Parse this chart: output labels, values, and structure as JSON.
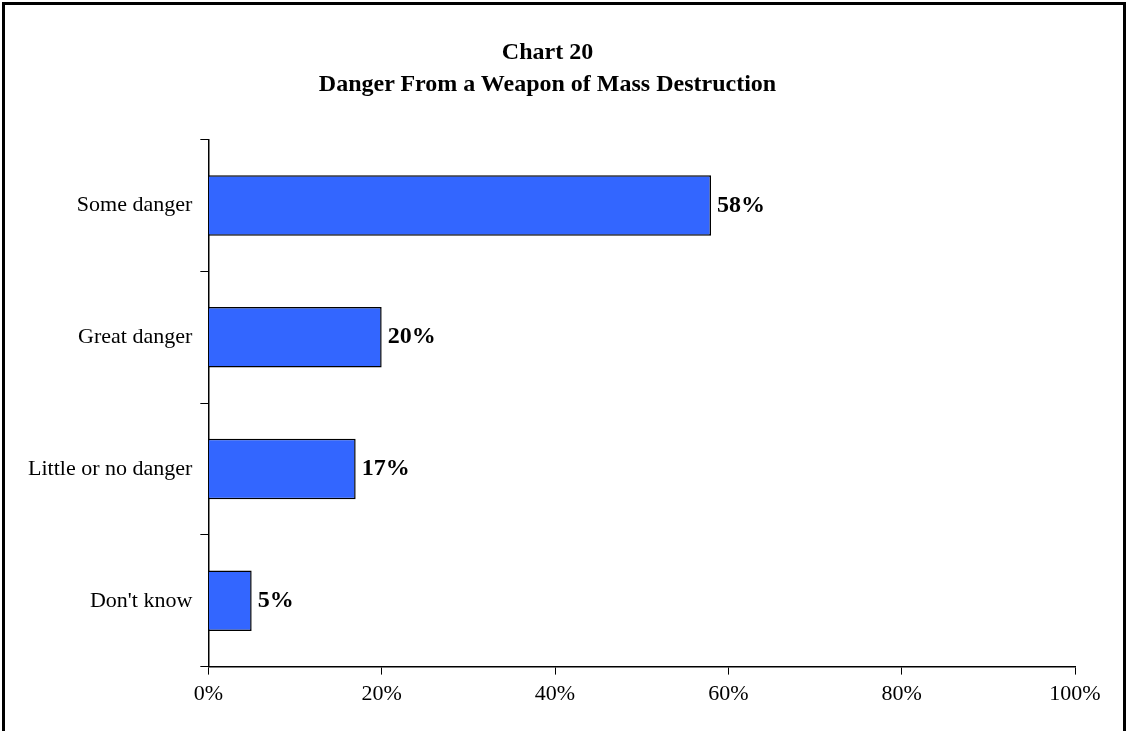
{
  "chart_data": {
    "type": "bar",
    "orientation": "horizontal",
    "title": "Chart 20",
    "subtitle": "Danger From a Weapon of Mass Destruction",
    "categories": [
      "Some danger",
      "Great danger",
      "Little or no danger",
      "Don't know"
    ],
    "values": [
      58,
      20,
      17,
      5
    ],
    "value_labels": [
      "58%",
      "20%",
      "17%",
      "5%"
    ],
    "color": "#3366ff",
    "xlim": [
      0,
      100
    ],
    "xticks": [
      {
        "value": 0,
        "label": "0%"
      },
      {
        "value": 20,
        "label": "20%"
      },
      {
        "value": 40,
        "label": "40%"
      },
      {
        "value": 60,
        "label": "60%"
      },
      {
        "value": 80,
        "label": "80%"
      },
      {
        "value": 100,
        "label": "100%"
      }
    ],
    "grid": false,
    "legend": false
  }
}
